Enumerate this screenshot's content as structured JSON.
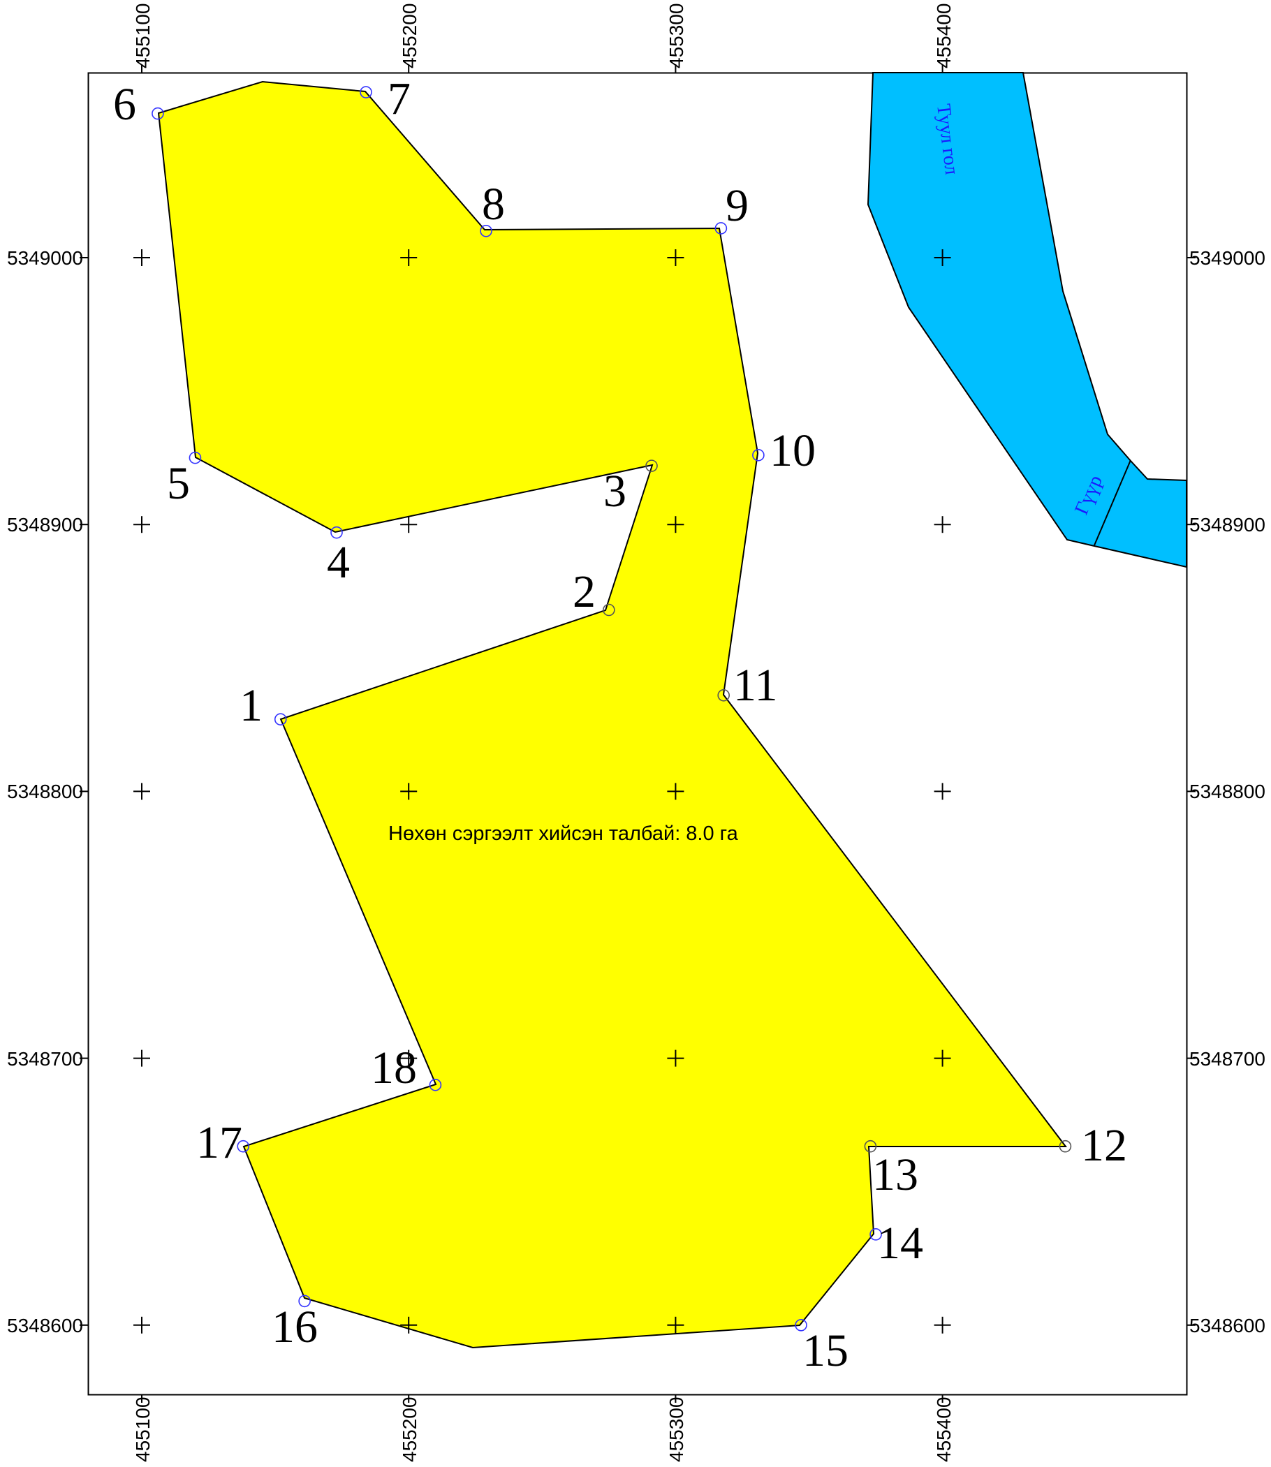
{
  "map": {
    "easting_ticks": [
      "455100",
      "455200",
      "455300",
      "455400"
    ],
    "northing_ticks": [
      "5349000",
      "5348900",
      "5348800",
      "5348700",
      "5348600"
    ],
    "area_label": "Нөхөн сэргээлт хийсэн талбай: 8.0 га",
    "polygon_fill": "#ffff00",
    "river_fill": "#00bfff",
    "vertex_marker_colors": {
      "blue": "#3333ff",
      "dark": "#555555"
    },
    "river": {
      "name": "Туул гол",
      "bridge_label": "Гүүр"
    },
    "vertices": [
      {
        "id": "1",
        "e": 455152,
        "n": 5348827,
        "marker": "blue"
      },
      {
        "id": "2",
        "e": 455275,
        "n": 5348868,
        "marker": "dark"
      },
      {
        "id": "3",
        "e": 455291,
        "n": 5348922,
        "marker": "dark"
      },
      {
        "id": "4",
        "e": 455173,
        "n": 5348897,
        "marker": "blue"
      },
      {
        "id": "5",
        "e": 455120,
        "n": 5348925,
        "marker": "blue"
      },
      {
        "id": "6",
        "e": 455106,
        "n": 5349054,
        "marker": "blue"
      },
      {
        "id": "7",
        "e": 455184,
        "n": 5349062,
        "marker": "blue"
      },
      {
        "id": "8",
        "e": 455229,
        "n": 5349010,
        "marker": "blue"
      },
      {
        "id": "9",
        "e": 455317,
        "n": 5349011,
        "marker": "blue"
      },
      {
        "id": "10",
        "e": 455331,
        "n": 5348926,
        "marker": "blue"
      },
      {
        "id": "11",
        "e": 455318,
        "n": 5348836,
        "marker": "dark"
      },
      {
        "id": "12",
        "e": 455446,
        "n": 5348667,
        "marker": "dark"
      },
      {
        "id": "13",
        "e": 455373,
        "n": 5348667,
        "marker": "dark"
      },
      {
        "id": "14",
        "e": 455375,
        "n": 5348634,
        "marker": "blue"
      },
      {
        "id": "15",
        "e": 455347,
        "n": 5348600,
        "marker": "blue"
      },
      {
        "id": "16",
        "e": 455161,
        "n": 5348609,
        "marker": "blue"
      },
      {
        "id": "17",
        "e": 455138,
        "n": 5348667,
        "marker": "blue"
      },
      {
        "id": "18",
        "e": 455210,
        "n": 5348690,
        "marker": "blue"
      }
    ]
  }
}
